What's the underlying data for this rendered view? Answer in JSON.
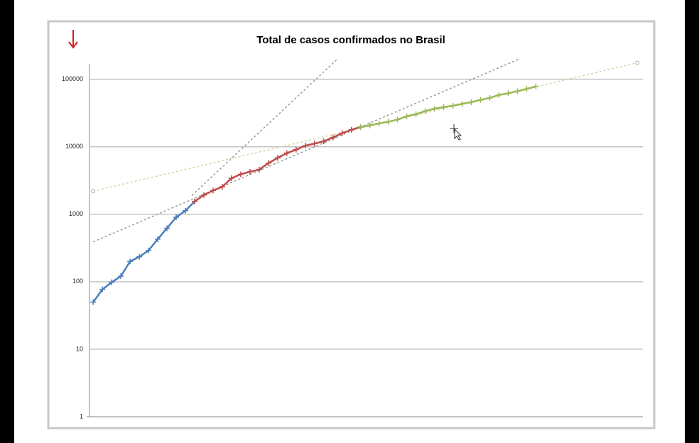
{
  "chart_data": {
    "type": "line",
    "title": "Total de casos confirmados no Brasil",
    "log_scale": true,
    "grid": true,
    "ylim": [
      1,
      200000
    ],
    "yticks": [
      1,
      10,
      100,
      1000,
      10000,
      100000
    ],
    "xlim": [
      -0.4,
      59.6
    ],
    "series": [
      {
        "color": "#4a7ebb",
        "x": [
          0,
          1,
          2,
          3,
          4,
          5,
          6,
          7,
          8,
          9,
          10,
          11
        ],
        "values": [
          50,
          77,
          98,
          121,
          200,
          234,
          291,
          428,
          621,
          904,
          1128,
          1546
        ]
      },
      {
        "color": "#be4b48",
        "x": [
          11,
          12,
          13,
          14,
          15,
          16,
          17,
          18,
          19,
          20,
          21,
          22,
          23,
          24,
          25,
          26,
          27,
          28,
          29
        ],
        "values": [
          1546,
          1924,
          2247,
          2554,
          3417,
          3904,
          4256,
          4579,
          5717,
          6836,
          8044,
          9056,
          10360,
          11130,
          12056,
          13717,
          15927,
          17857,
          19638
        ]
      },
      {
        "color": "#98b954",
        "x": [
          29,
          30,
          31,
          32,
          33,
          34,
          35,
          36,
          37,
          38,
          39,
          40,
          41,
          42,
          43,
          44,
          45,
          46,
          47,
          48
        ],
        "values": [
          19638,
          20727,
          22169,
          23430,
          25262,
          28320,
          30425,
          33682,
          36599,
          38654,
          40581,
          43079,
          45757,
          49492,
          52995,
          58509,
          61888,
          66501,
          71886,
          78162
        ]
      }
    ],
    "trendlines": [
      {
        "color": "#9a9a9a",
        "x": [
          10.7,
          26.5
        ],
        "values": [
          1900,
          200000
        ]
      },
      {
        "color": "#9a9a9a",
        "x": [
          0,
          46.2
        ],
        "values": [
          390,
          200000
        ]
      },
      {
        "color": "#d8d0a8",
        "x": [
          0,
          59
        ],
        "values": [
          2200,
          175000
        ]
      }
    ]
  }
}
